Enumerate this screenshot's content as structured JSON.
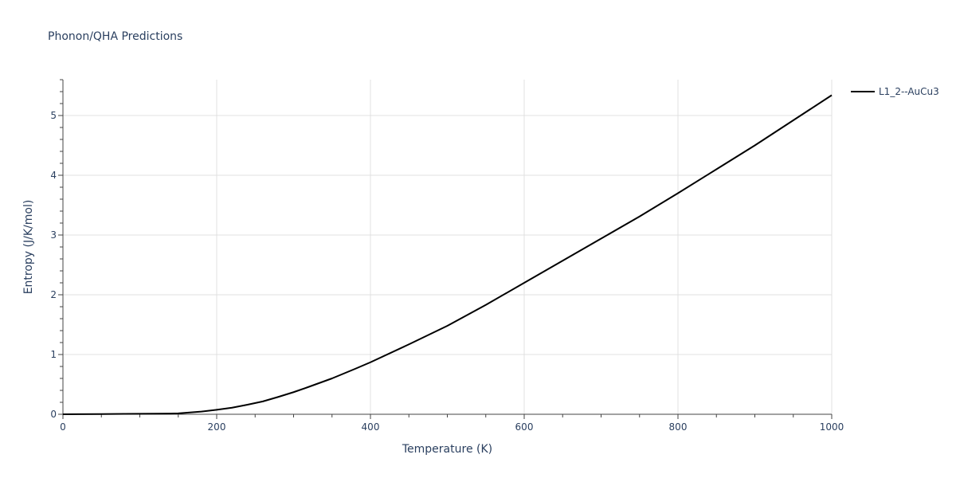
{
  "chart_data": {
    "type": "line",
    "title": "Phonon/QHA Predictions",
    "xlabel": "Temperature (K)",
    "ylabel": "Entropy (J/K/mol)",
    "xlim": [
      0,
      1000
    ],
    "ylim": [
      0,
      5.6
    ],
    "x_ticks": [
      0,
      200,
      400,
      600,
      800,
      1000
    ],
    "y_ticks": [
      0,
      1,
      2,
      3,
      4,
      5
    ],
    "grid": true,
    "legend_position": "right",
    "series": [
      {
        "name": "L1_2--AuCu3",
        "color": "#000000",
        "x": [
          0,
          20,
          50,
          80,
          100,
          120,
          140,
          150,
          160,
          180,
          200,
          220,
          240,
          260,
          280,
          300,
          320,
          350,
          380,
          400,
          450,
          500,
          550,
          600,
          650,
          700,
          750,
          800,
          850,
          900,
          950,
          1000
        ],
        "y": [
          0,
          0.001,
          0.003,
          0.006,
          0.008,
          0.01,
          0.012,
          0.015,
          0.025,
          0.045,
          0.075,
          0.11,
          0.16,
          0.215,
          0.29,
          0.37,
          0.46,
          0.6,
          0.76,
          0.87,
          1.17,
          1.48,
          1.83,
          2.2,
          2.57,
          2.94,
          3.31,
          3.7,
          4.1,
          4.5,
          4.92,
          5.34
        ]
      }
    ]
  }
}
